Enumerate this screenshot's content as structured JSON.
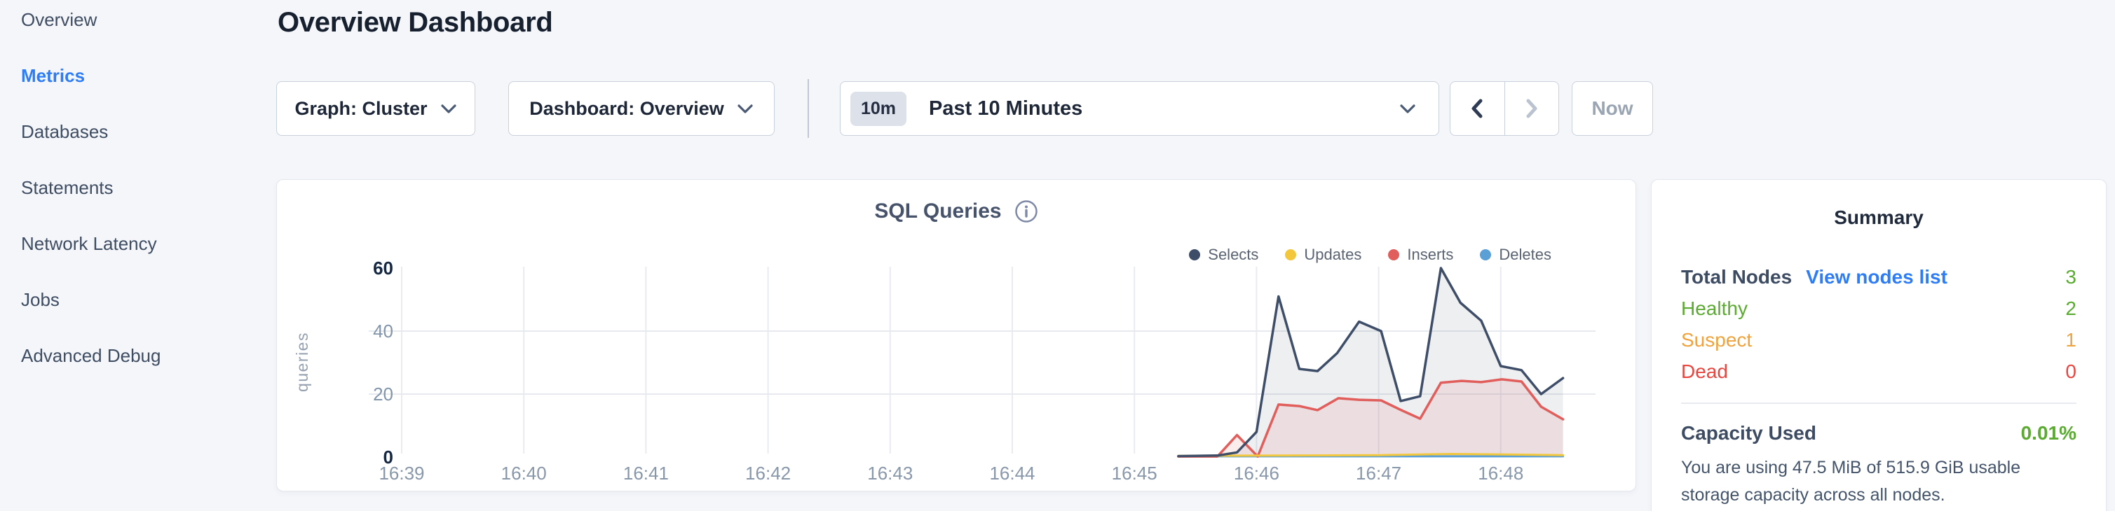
{
  "theme": {
    "accent_blue": "#2f7df6",
    "status_green": "#5baa32",
    "status_orange": "#f0a33c",
    "status_red": "#e8463f",
    "page_bg": "#f4f6fa"
  },
  "sidebar": {
    "items": [
      {
        "label": "Overview",
        "active": false
      },
      {
        "label": "Metrics",
        "active": true
      },
      {
        "label": "Databases",
        "active": false
      },
      {
        "label": "Statements",
        "active": false
      },
      {
        "label": "Network Latency",
        "active": false
      },
      {
        "label": "Jobs",
        "active": false
      },
      {
        "label": "Advanced Debug",
        "active": false
      }
    ]
  },
  "header": {
    "title": "Overview Dashboard"
  },
  "controls": {
    "graph_dropdown": {
      "label": "Graph: Cluster"
    },
    "dashboard_dropdown": {
      "label": "Dashboard: Overview"
    },
    "time_picker": {
      "badge": "10m",
      "label": "Past 10 Minutes"
    },
    "prev_button": {
      "icon": "chevron-left",
      "enabled": true
    },
    "next_button": {
      "icon": "chevron-right",
      "enabled": false
    },
    "now_button": {
      "label": "Now",
      "enabled": false
    }
  },
  "chart_data": {
    "type": "area",
    "title": "SQL Queries",
    "ylabel": "queries",
    "ylim": [
      0,
      60
    ],
    "y_ticks": [
      0,
      20,
      40,
      60
    ],
    "grid": true,
    "legend_position": "top-right",
    "x_axis_note": "m = minutes after 16:39",
    "x_ticks": [
      {
        "m": 0,
        "label": "16:39"
      },
      {
        "m": 1,
        "label": "16:40"
      },
      {
        "m": 2,
        "label": "16:41"
      },
      {
        "m": 3,
        "label": "16:42"
      },
      {
        "m": 4,
        "label": "16:43"
      },
      {
        "m": 5,
        "label": "16:44"
      },
      {
        "m": 6,
        "label": "16:45"
      },
      {
        "m": 7,
        "label": "16:46"
      },
      {
        "m": 8,
        "label": "16:47"
      },
      {
        "m": 9,
        "label": "16:48"
      }
    ],
    "series": [
      {
        "name": "Selects",
        "color": "#3e4d68",
        "fill": "rgba(62,77,104,0.09)",
        "width": 3.5,
        "points": [
          [
            6.36,
            0.3
          ],
          [
            6.68,
            0.5
          ],
          [
            6.84,
            1.5
          ],
          [
            7.0,
            8
          ],
          [
            7.18,
            51
          ],
          [
            7.35,
            28
          ],
          [
            7.5,
            27.3
          ],
          [
            7.66,
            33
          ],
          [
            7.84,
            43
          ],
          [
            8.02,
            40
          ],
          [
            8.18,
            17.8
          ],
          [
            8.34,
            19.3
          ],
          [
            8.51,
            60
          ],
          [
            8.67,
            49
          ],
          [
            8.84,
            43.3
          ],
          [
            9.0,
            28.9
          ],
          [
            9.17,
            27.6
          ],
          [
            9.33,
            20
          ],
          [
            9.51,
            25.1
          ]
        ]
      },
      {
        "name": "Updates",
        "color": "#f2c73c",
        "fill": "rgba(242,199,60,0.10)",
        "width": 3,
        "points": [
          [
            6.36,
            0.4
          ],
          [
            7.2,
            0.5
          ],
          [
            8.0,
            0.6
          ],
          [
            8.6,
            1.0
          ],
          [
            9.1,
            0.8
          ],
          [
            9.51,
            0.6
          ]
        ]
      },
      {
        "name": "Inserts",
        "color": "#e05e5b",
        "fill": "rgba(224,94,91,0.11)",
        "width": 3.5,
        "points": [
          [
            6.36,
            0.2
          ],
          [
            6.68,
            0.2
          ],
          [
            6.84,
            7
          ],
          [
            7.01,
            0.2
          ],
          [
            7.18,
            16.7
          ],
          [
            7.35,
            16.2
          ],
          [
            7.5,
            14.9
          ],
          [
            7.67,
            18.7
          ],
          [
            7.84,
            18.2
          ],
          [
            8.02,
            18
          ],
          [
            8.18,
            15
          ],
          [
            8.34,
            12.2
          ],
          [
            8.51,
            23.6
          ],
          [
            8.68,
            24.2
          ],
          [
            8.84,
            23.8
          ],
          [
            9.01,
            24.7
          ],
          [
            9.17,
            24
          ],
          [
            9.33,
            16
          ],
          [
            9.51,
            12
          ]
        ]
      },
      {
        "name": "Deletes",
        "color": "#5a9fd6",
        "fill": "rgba(90,159,214,0.10)",
        "width": 3,
        "points": [
          [
            6.36,
            0.25
          ],
          [
            9.51,
            0.25
          ]
        ]
      }
    ]
  },
  "summary": {
    "title": "Summary",
    "total_nodes": {
      "label": "Total Nodes",
      "link": "View nodes list",
      "value": "3",
      "color": "#5baa32"
    },
    "node_rows": [
      {
        "label": "Healthy",
        "value": "2",
        "color": "#5baa32"
      },
      {
        "label": "Suspect",
        "value": "1",
        "color": "#f0a33c"
      },
      {
        "label": "Dead",
        "value": "0",
        "color": "#e8463f"
      }
    ],
    "capacity": {
      "label": "Capacity Used",
      "value": "0.01%",
      "color": "#5baa32",
      "description": "You are using 47.5 MiB of 515.9 GiB usable storage capacity across all nodes."
    }
  }
}
